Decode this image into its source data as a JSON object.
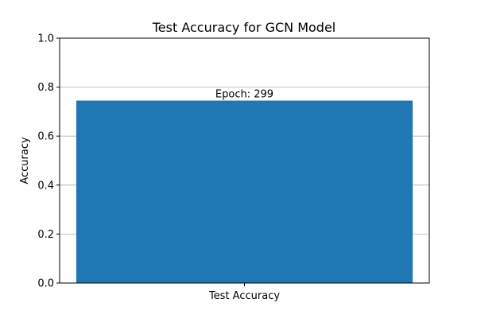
{
  "chart_data": {
    "type": "bar",
    "title": "Test Accuracy for GCN Model",
    "xlabel": "",
    "ylabel": "Accuracy",
    "categories": [
      "Test Accuracy"
    ],
    "values": [
      0.745
    ],
    "ylim": [
      0,
      1.0
    ],
    "yticks": [
      "0.0",
      "0.2",
      "0.4",
      "0.6",
      "0.8",
      "1.0"
    ],
    "grid": "y",
    "annotations": [
      {
        "text": "Epoch: 299",
        "category": "Test Accuracy"
      }
    ],
    "bar_color": "#1f77b4"
  }
}
